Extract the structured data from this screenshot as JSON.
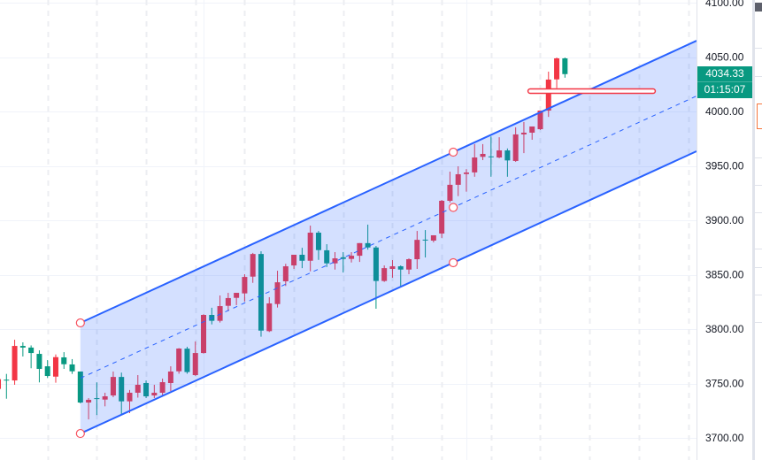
{
  "chart_data": {
    "type": "candlestick",
    "up_color": "#f23645",
    "down_color": "#089981",
    "ylim": [
      3700,
      4100
    ],
    "y_ticks": [
      "4100.00",
      "4050.00",
      "4000.00",
      "3950.00",
      "3900.00",
      "3850.00",
      "3800.00",
      "3750.00",
      "3700.00"
    ],
    "y_tick_values": [
      4100,
      4050,
      4000,
      3950,
      3900,
      3850,
      3800,
      3750,
      3700
    ],
    "grid": true,
    "ohlc": [
      [
        3745,
        3756,
        3743,
        3754
      ],
      [
        3753.5,
        3758.8,
        3736,
        3753
      ],
      [
        3752.8,
        3790.2,
        3748.8,
        3784.5
      ],
      [
        3784.5,
        3787.8,
        3774.8,
        3783
      ],
      [
        3783,
        3785,
        3764,
        3778
      ],
      [
        3777.2,
        3780.5,
        3751,
        3763.4
      ],
      [
        3765.8,
        3771.5,
        3755,
        3756.9
      ],
      [
        3756.3,
        3776.7,
        3750.7,
        3774.2
      ],
      [
        3774,
        3778.8,
        3763.4,
        3767.7
      ],
      [
        3767.5,
        3772.4,
        3758.8,
        3761.2
      ],
      [
        3761,
        3761,
        3731.7,
        3732.5
      ],
      [
        3732.5,
        3736.6,
        3717,
        3735
      ],
      [
        3736.5,
        3751,
        3721,
        3736.3
      ],
      [
        3735.2,
        3741.5,
        3729,
        3738.2
      ],
      [
        3739,
        3761,
        3737.4,
        3756
      ],
      [
        3756,
        3760,
        3721,
        3733.6
      ],
      [
        3733.6,
        3744,
        3722.8,
        3741.5
      ],
      [
        3741.5,
        3757.7,
        3737,
        3748.8
      ],
      [
        3750.4,
        3752.8,
        3736.6,
        3738.2
      ],
      [
        3739,
        3748.8,
        3736.6,
        3741.5
      ],
      [
        3741.5,
        3754.5,
        3739,
        3751.2
      ],
      [
        3750.4,
        3765.8,
        3743,
        3761
      ],
      [
        3761.2,
        3782.5,
        3759,
        3782.1
      ],
      [
        3782,
        3783.7,
        3759,
        3760.5
      ],
      [
        3757.7,
        3788.6,
        3757,
        3778
      ],
      [
        3778,
        3813.6,
        3777.5,
        3813
      ],
      [
        3813,
        3819.6,
        3804.3,
        3807.6
      ],
      [
        3807.6,
        3830.9,
        3806,
        3821.1
      ],
      [
        3821.4,
        3833.3,
        3816.5,
        3828.5
      ],
      [
        3828.7,
        3833.3,
        3822,
        3833.3
      ],
      [
        3832.8,
        3850.4,
        3825.4,
        3847.9
      ],
      [
        3848.2,
        3870,
        3842.5,
        3869
      ],
      [
        3869,
        3871.5,
        3793,
        3798.6
      ],
      [
        3798.1,
        3829.3,
        3797.3,
        3823.6
      ],
      [
        3823,
        3853.6,
        3819.8,
        3843
      ],
      [
        3843.9,
        3860,
        3839.6,
        3857.7
      ],
      [
        3858.5,
        3868.3,
        3855.3,
        3868.3
      ],
      [
        3868.3,
        3874.7,
        3856,
        3862.8
      ],
      [
        3862.8,
        3895.1,
        3853.1,
        3888.6
      ],
      [
        3888.6,
        3890.2,
        3863.6,
        3872.6
      ],
      [
        3872.4,
        3878,
        3857,
        3860.4
      ],
      [
        3860.4,
        3870.7,
        3854.7,
        3865
      ],
      [
        3866,
        3870.7,
        3852,
        3864.5
      ],
      [
        3864.5,
        3870.7,
        3861.2,
        3867.4
      ],
      [
        3867.4,
        3879,
        3861.7,
        3879
      ],
      [
        3879,
        3896,
        3873,
        3875
      ],
      [
        3875,
        3876.4,
        3818.7,
        3844.2
      ],
      [
        3844.2,
        3858.5,
        3843.4,
        3856
      ],
      [
        3855.3,
        3863.4,
        3847.2,
        3857.7
      ],
      [
        3857.7,
        3858.5,
        3838.2,
        3854.7
      ],
      [
        3854.7,
        3865,
        3850.4,
        3864.2
      ],
      [
        3864.2,
        3890.2,
        3855.3,
        3882
      ],
      [
        3882.2,
        3891,
        3865.8,
        3881.8
      ],
      [
        3881.3,
        3886.2,
        3879.7,
        3886.2
      ],
      [
        3887.8,
        3918.7,
        3883.8,
        3917.9
      ],
      [
        3917.9,
        3944.7,
        3916.3,
        3932.6
      ],
      [
        3932.6,
        3949.6,
        3922.2,
        3942.3
      ],
      [
        3942.5,
        3947,
        3926.3,
        3943.9
      ],
      [
        3944,
        3970,
        3940,
        3957.7
      ],
      [
        3958.3,
        3970,
        3955.3,
        3961
      ],
      [
        3958.7,
        3977,
        3940,
        3958.3
      ],
      [
        3957.7,
        3976.3,
        3957,
        3964.2
      ],
      [
        3964.2,
        3966,
        3940,
        3955
      ],
      [
        3954.5,
        3985.4,
        3953.7,
        3978.9
      ],
      [
        3978.9,
        3990.3,
        3961.7,
        3980.5
      ],
      [
        3980.5,
        3986.2,
        3974,
        3986.2
      ],
      [
        3983.7,
        4000.8,
        3983,
        4000.8
      ],
      [
        4000.8,
        4036.6,
        3995,
        4029.3
      ],
      [
        4029.5,
        4049.6,
        4021.4,
        4048.8
      ],
      [
        4048.8,
        4049.6,
        4031,
        4034.33
      ]
    ],
    "channel": {
      "upper": [
        [
          10,
          3805.7
        ],
        [
          55.4,
          3962.6
        ]
      ],
      "lower": [
        [
          10,
          3704
        ],
        [
          55.4,
          3861
        ]
      ],
      "extend_right": true,
      "line_color": "#2962ff",
      "fill_color": "rgba(41,98,255,0.2)"
    },
    "horizontal_line": {
      "price": 4018.7,
      "from_bar": 64.5,
      "to_bar": 80,
      "color": "#f23645"
    }
  },
  "price_tag": {
    "price": "4034.33",
    "countdown": "01:15:07",
    "color": "#089981"
  }
}
